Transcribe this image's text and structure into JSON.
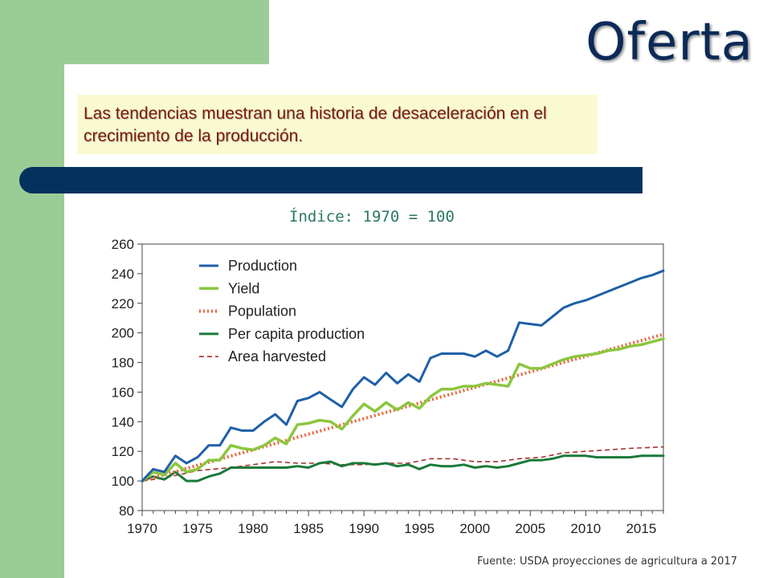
{
  "slide": {
    "title": "Oferta",
    "subtitle": "Las tendencias muestran una historia de desaceleración en el crecimiento de la producción.",
    "index_label": "Índice: 1970 = 100",
    "source": "Fuente: USDA proyecciones de agricultura a 2017"
  },
  "colors": {
    "green": "#9ccc95",
    "navy_bar": "#04325f",
    "title": "#0b2a57",
    "subtitle_bg": "#fafad2",
    "subtitle_text": "#7b1a10"
  },
  "chart_data": {
    "type": "line",
    "title": "",
    "xlabel": "",
    "ylabel": "",
    "xlim": [
      1970,
      2017
    ],
    "ylim": [
      80,
      260
    ],
    "x_ticks": [
      1970,
      1975,
      1980,
      1985,
      1990,
      1995,
      2000,
      2005,
      2010,
      2015
    ],
    "y_ticks": [
      80,
      100,
      120,
      140,
      160,
      180,
      200,
      220,
      240,
      260
    ],
    "grid": false,
    "legend_position": "top-left",
    "series": [
      {
        "name": "Production",
        "color": "#1f5fa8",
        "style": "solid",
        "x": [
          1970,
          1971,
          1972,
          1973,
          1974,
          1975,
          1976,
          1977,
          1978,
          1979,
          1980,
          1981,
          1982,
          1983,
          1984,
          1985,
          1986,
          1987,
          1988,
          1989,
          1990,
          1991,
          1992,
          1993,
          1994,
          1995,
          1996,
          1997,
          1998,
          1999,
          2000,
          2001,
          2002,
          2003,
          2004,
          2005,
          2006,
          2007,
          2008,
          2009,
          2010,
          2011,
          2012,
          2013,
          2014,
          2015,
          2016,
          2017
        ],
        "values": [
          100,
          108,
          106,
          117,
          112,
          116,
          124,
          124,
          136,
          134,
          134,
          140,
          145,
          138,
          154,
          156,
          160,
          155,
          150,
          162,
          170,
          165,
          173,
          166,
          172,
          167,
          183,
          186,
          186,
          186,
          184,
          188,
          184,
          188,
          207,
          206,
          205,
          211,
          217,
          220,
          222,
          225,
          228,
          231,
          234,
          237,
          239,
          242
        ]
      },
      {
        "name": "Yield",
        "color": "#8cc63f",
        "style": "solid",
        "x": [
          1970,
          1971,
          1972,
          1973,
          1974,
          1975,
          1976,
          1977,
          1978,
          1979,
          1980,
          1981,
          1982,
          1983,
          1984,
          1985,
          1986,
          1987,
          1988,
          1989,
          1990,
          1991,
          1992,
          1993,
          1994,
          1995,
          1996,
          1997,
          1998,
          1999,
          2000,
          2001,
          2002,
          2003,
          2004,
          2005,
          2006,
          2007,
          2008,
          2009,
          2010,
          2011,
          2012,
          2013,
          2014,
          2015,
          2016,
          2017
        ],
        "values": [
          100,
          106,
          104,
          112,
          106,
          108,
          114,
          114,
          124,
          122,
          121,
          124,
          129,
          125,
          138,
          139,
          141,
          140,
          135,
          144,
          152,
          147,
          153,
          148,
          153,
          149,
          157,
          162,
          162,
          164,
          164,
          166,
          165,
          164,
          179,
          176,
          176,
          179,
          182,
          184,
          185,
          186,
          188,
          189,
          191,
          192,
          194,
          196
        ]
      },
      {
        "name": "Population",
        "color": "#e8653a",
        "style": "dotted",
        "x": [
          1970,
          2017
        ],
        "values": [
          100,
          199
        ]
      },
      {
        "name": "Per capita production",
        "color": "#1a7a3a",
        "style": "solid",
        "x": [
          1970,
          1971,
          1972,
          1973,
          1974,
          1975,
          1976,
          1977,
          1978,
          1979,
          1980,
          1981,
          1982,
          1983,
          1984,
          1985,
          1986,
          1987,
          1988,
          1989,
          1990,
          1991,
          1992,
          1993,
          1994,
          1995,
          1996,
          1997,
          1998,
          1999,
          2000,
          2001,
          2002,
          2003,
          2004,
          2005,
          2006,
          2007,
          2008,
          2009,
          2010,
          2011,
          2012,
          2013,
          2014,
          2015,
          2016,
          2017
        ],
        "values": [
          100,
          103,
          101,
          106,
          100,
          100,
          103,
          105,
          109,
          109,
          109,
          109,
          109,
          109,
          110,
          109,
          112,
          113,
          110,
          112,
          112,
          111,
          112,
          110,
          111,
          108,
          111,
          110,
          110,
          111,
          109,
          110,
          109,
          110,
          112,
          114,
          114,
          115,
          117,
          117,
          117,
          116,
          116,
          116,
          116,
          117,
          117,
          117
        ]
      },
      {
        "name": "Area harvested",
        "color": "#a8302e",
        "style": "dashed",
        "x": [
          1970,
          1972,
          1975,
          1978,
          1980,
          1982,
          1984,
          1986,
          1988,
          1990,
          1992,
          1994,
          1996,
          1998,
          2000,
          2002,
          2004,
          2006,
          2008,
          2010,
          2012,
          2014,
          2017
        ],
        "values": [
          100,
          102,
          107,
          109,
          111,
          113,
          112,
          112,
          111,
          111,
          112,
          112,
          115,
          115,
          113,
          113,
          115,
          116,
          119,
          120,
          121,
          122,
          123
        ]
      }
    ]
  }
}
